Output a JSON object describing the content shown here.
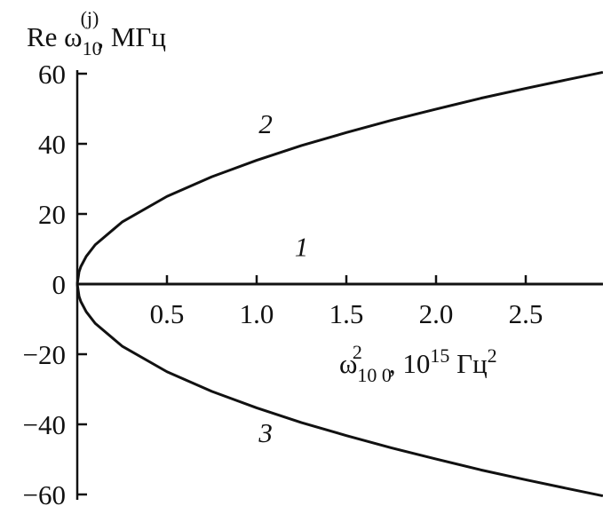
{
  "chart_data": {
    "type": "line",
    "ylabel": {
      "main": "Re ω",
      "sub": "10",
      "sup": "(j)",
      "unit": ", МГц"
    },
    "xlabel": {
      "main": "ω",
      "sub": "10 0",
      "sup": "2",
      "unit": ", 10",
      "unit_sup": "15",
      "unit2": " Гц",
      "unit2_sup": "2"
    },
    "xlim": [
      0,
      2.93
    ],
    "ylim": [
      -60,
      60
    ],
    "xticks": [
      0.5,
      1.0,
      1.5,
      2.0,
      2.5
    ],
    "xtick_labels": [
      "0.5",
      "1.0",
      "1.5",
      "2.0",
      "2.5"
    ],
    "yticks": [
      60,
      40,
      20,
      0,
      -20,
      -40,
      -60
    ],
    "ytick_labels": [
      "60",
      "40",
      "20",
      "0",
      "−20",
      "−40",
      "−60"
    ],
    "grid": false,
    "color": "#111111",
    "series": [
      {
        "name": "2",
        "label_at": [
          1.05,
          43
        ],
        "x": [
          0,
          0.01,
          0.02,
          0.05,
          0.1,
          0.25,
          0.5,
          0.75,
          1.0,
          1.25,
          1.5,
          1.75,
          2.0,
          2.25,
          2.5,
          2.75,
          2.93
        ],
        "y": [
          0,
          3.5,
          5.0,
          7.9,
          11.2,
          17.7,
          25.0,
          30.6,
          35.3,
          39.5,
          43.2,
          46.7,
          49.9,
          53.0,
          55.8,
          58.5,
          60.4
        ]
      },
      {
        "name": "1",
        "label_at": [
          1.25,
          8
        ],
        "x": [
          0,
          2.93
        ],
        "y": [
          0,
          0
        ]
      },
      {
        "name": "3",
        "label_at": [
          1.05,
          -45
        ],
        "x": [
          0,
          0.01,
          0.02,
          0.05,
          0.1,
          0.25,
          0.5,
          0.75,
          1.0,
          1.25,
          1.5,
          1.75,
          2.0,
          2.25,
          2.5,
          2.75,
          2.93
        ],
        "y": [
          0,
          -3.5,
          -5.0,
          -7.9,
          -11.2,
          -17.7,
          -25.0,
          -30.6,
          -35.3,
          -39.5,
          -43.2,
          -46.7,
          -49.9,
          -53.0,
          -55.8,
          -58.5,
          -60.4
        ]
      }
    ]
  }
}
